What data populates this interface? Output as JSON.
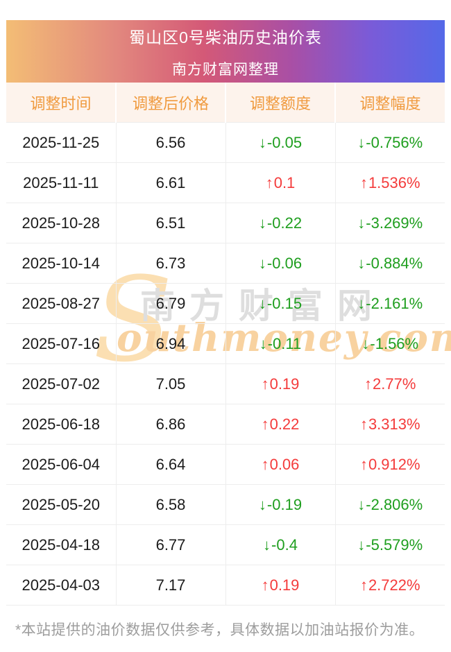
{
  "banner": {
    "title": "蜀山区0号柴油历史油价表",
    "subtitle": "南方财富网整理"
  },
  "table": {
    "columns": [
      "调整时间",
      "调整后价格",
      "调整额度",
      "调整幅度"
    ],
    "arrows": {
      "up": "↑",
      "down": "↓"
    },
    "rows": [
      {
        "date": "2025-11-25",
        "price": "6.56",
        "change": "-0.05",
        "pct": "-0.756%",
        "dir": "down"
      },
      {
        "date": "2025-11-11",
        "price": "6.61",
        "change": "0.1",
        "pct": "1.536%",
        "dir": "up"
      },
      {
        "date": "2025-10-28",
        "price": "6.51",
        "change": "-0.22",
        "pct": "-3.269%",
        "dir": "down"
      },
      {
        "date": "2025-10-14",
        "price": "6.73",
        "change": "-0.06",
        "pct": "-0.884%",
        "dir": "down"
      },
      {
        "date": "2025-08-27",
        "price": "6.79",
        "change": "-0.15",
        "pct": "-2.161%",
        "dir": "down"
      },
      {
        "date": "2025-07-16",
        "price": "6.94",
        "change": "-0.11",
        "pct": "-1.56%",
        "dir": "down"
      },
      {
        "date": "2025-07-02",
        "price": "7.05",
        "change": "0.19",
        "pct": "2.77%",
        "dir": "up"
      },
      {
        "date": "2025-06-18",
        "price": "6.86",
        "change": "0.22",
        "pct": "3.313%",
        "dir": "up"
      },
      {
        "date": "2025-06-04",
        "price": "6.64",
        "change": "0.06",
        "pct": "0.912%",
        "dir": "up"
      },
      {
        "date": "2025-05-20",
        "price": "6.58",
        "change": "-0.19",
        "pct": "-2.806%",
        "dir": "down"
      },
      {
        "date": "2025-04-18",
        "price": "6.77",
        "change": "-0.4",
        "pct": "-5.579%",
        "dir": "down"
      },
      {
        "date": "2025-04-03",
        "price": "7.17",
        "change": "0.19",
        "pct": "2.722%",
        "dir": "up"
      }
    ]
  },
  "watermark": {
    "initial": "S",
    "cn": "南方财富网",
    "en": "outhmoney.com"
  },
  "footer": {
    "note": "*本站提供的油价数据仅供参考，具体数据以加油站报价为准。"
  },
  "colors": {
    "up": "#f43b3b",
    "down": "#1e9e1e",
    "header_text": "#f09a3e",
    "header_bg": "#fdf3ec",
    "banner_gradient": [
      "#f3bd75 0%",
      "#e2887e 25%",
      "#d45977 45%",
      "#a94fa5 65%",
      "#7a5bd8 83%",
      "#5569e8 100%"
    ]
  }
}
